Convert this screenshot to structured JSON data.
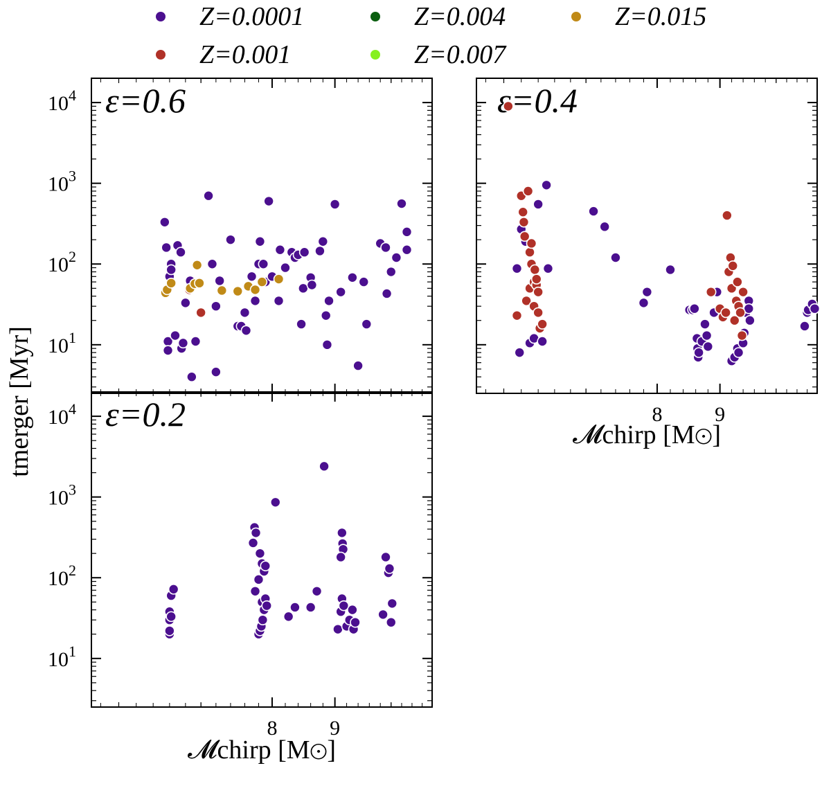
{
  "chart_data": {
    "type": "scatter",
    "x_scale": "log",
    "y_scale": "log",
    "xlabel": "𝓜chirp [M⊙]",
    "ylabel": "tmerger [Myr]",
    "xlim": [
      5.7,
      10.8
    ],
    "ylim": [
      2.5,
      20000
    ],
    "xticks": [
      {
        "value": 8,
        "label": "8"
      },
      {
        "value": 9,
        "label": "9"
      }
    ],
    "yticks": [
      {
        "value": 10,
        "base": "10",
        "exp": "1"
      },
      {
        "value": 100,
        "base": "10",
        "exp": "2"
      },
      {
        "value": 1000,
        "base": "10",
        "exp": "3"
      },
      {
        "value": 10000,
        "base": "10",
        "exp": "4"
      }
    ],
    "legend": {
      "placement": "top",
      "entries": [
        {
          "label": "Z=0.0001",
          "color": "#4B0F8F"
        },
        {
          "label": "Z=0.004",
          "color": "#0B5E10"
        },
        {
          "label": "Z=0.015",
          "color": "#C08A17"
        },
        {
          "label": "Z=0.001",
          "color": "#B03128"
        },
        {
          "label": "Z=0.007",
          "color": "#86F01F"
        }
      ]
    },
    "panels": [
      {
        "id": "eps06",
        "label": "ε=0.6",
        "series": [
          {
            "name": "Z=0.0001",
            "color": "#4B0F8F",
            "points": [
              [
                6.58,
                11
              ],
              [
                6.54,
                330
              ],
              [
                6.56,
                160
              ],
              [
                6.58,
                8.5
              ],
              [
                6.6,
                70
              ],
              [
                6.62,
                100
              ],
              [
                6.62,
                85
              ],
              [
                6.67,
                13
              ],
              [
                6.7,
                170
              ],
              [
                6.74,
                140
              ],
              [
                6.75,
                9
              ],
              [
                6.77,
                10.5
              ],
              [
                6.8,
                33
              ],
              [
                6.86,
                62
              ],
              [
                6.88,
                4
              ],
              [
                6.93,
                11
              ],
              [
                7.1,
                700
              ],
              [
                7.15,
                100
              ],
              [
                7.2,
                4.6
              ],
              [
                7.2,
                30
              ],
              [
                7.25,
                62
              ],
              [
                7.4,
                200
              ],
              [
                7.5,
                17
              ],
              [
                7.55,
                17
              ],
              [
                7.6,
                25
              ],
              [
                7.62,
                15
              ],
              [
                7.7,
                70
              ],
              [
                7.75,
                35
              ],
              [
                7.8,
                100
              ],
              [
                7.82,
                190
              ],
              [
                7.87,
                100
              ],
              [
                7.9,
                60
              ],
              [
                7.95,
                600
              ],
              [
                8.0,
                70
              ],
              [
                8.1,
                35
              ],
              [
                8.12,
                150
              ],
              [
                8.2,
                90
              ],
              [
                8.3,
                140
              ],
              [
                8.35,
                120
              ],
              [
                8.4,
                130
              ],
              [
                8.45,
                18
              ],
              [
                8.48,
                50
              ],
              [
                8.5,
                140
              ],
              [
                8.6,
                68
              ],
              [
                8.62,
                55
              ],
              [
                8.75,
                145
              ],
              [
                8.8,
                190
              ],
              [
                8.85,
                23
              ],
              [
                8.87,
                10
              ],
              [
                8.9,
                35
              ],
              [
                9.0,
                550
              ],
              [
                9.1,
                45
              ],
              [
                9.3,
                68
              ],
              [
                9.4,
                5.5
              ],
              [
                9.5,
                60
              ],
              [
                9.55,
                18
              ],
              [
                9.8,
                180
              ],
              [
                9.9,
                160
              ],
              [
                9.92,
                43
              ],
              [
                10.0,
                80
              ],
              [
                10.1,
                120
              ],
              [
                10.2,
                560
              ],
              [
                10.3,
                150
              ],
              [
                10.3,
                250
              ]
            ]
          },
          {
            "name": "Z=0.001",
            "color": "#B03128",
            "points": [
              [
                6.85,
                48
              ],
              [
                7.0,
                25
              ]
            ]
          },
          {
            "name": "Z=0.015",
            "color": "#C08A17",
            "points": [
              [
                6.55,
                44
              ],
              [
                6.57,
                48
              ],
              [
                6.62,
                58
              ],
              [
                6.86,
                50
              ],
              [
                6.92,
                57
              ],
              [
                6.95,
                97
              ],
              [
                6.98,
                58
              ],
              [
                7.28,
                47
              ],
              [
                7.5,
                46
              ],
              [
                7.65,
                53
              ],
              [
                7.75,
                48
              ],
              [
                7.85,
                60
              ],
              [
                8.1,
                65
              ]
            ]
          }
        ]
      },
      {
        "id": "eps04",
        "label": "ε=0.4",
        "series": [
          {
            "name": "Z=0.0001",
            "color": "#4B0F8F",
            "points": [
              [
                6.15,
                88
              ],
              [
                6.2,
                270
              ],
              [
                6.18,
                8
              ],
              [
                6.25,
                190
              ],
              [
                6.3,
                10.5
              ],
              [
                6.35,
                12
              ],
              [
                6.4,
                550
              ],
              [
                6.45,
                11
              ],
              [
                6.5,
                950
              ],
              [
                6.52,
                88
              ],
              [
                7.1,
                450
              ],
              [
                7.25,
                290
              ],
              [
                7.4,
                120
              ],
              [
                7.85,
                45
              ],
              [
                7.8,
                33
              ],
              [
                8.2,
                85
              ],
              [
                8.5,
                27
              ],
              [
                8.55,
                27
              ],
              [
                8.58,
                28
              ],
              [
                8.62,
                12
              ],
              [
                8.63,
                9
              ],
              [
                8.64,
                7
              ],
              [
                8.65,
                8
              ],
              [
                8.7,
                11
              ],
              [
                8.75,
                18
              ],
              [
                8.78,
                13
              ],
              [
                8.8,
                9.5
              ],
              [
                8.9,
                25
              ],
              [
                8.95,
                45
              ],
              [
                9.2,
                6.3
              ],
              [
                9.25,
                7
              ],
              [
                9.3,
                9
              ],
              [
                9.32,
                8
              ],
              [
                9.4,
                10.5
              ],
              [
                9.42,
                14
              ],
              [
                9.45,
                25
              ],
              [
                9.5,
                35
              ],
              [
                9.5,
                28
              ],
              [
                9.52,
                20
              ],
              [
                10.55,
                17
              ],
              [
                10.6,
                25
              ],
              [
                10.62,
                27
              ],
              [
                10.7,
                32
              ],
              [
                10.75,
                28
              ]
            ]
          },
          {
            "name": "Z=0.001",
            "color": "#B03128",
            "points": [
              [
                6.05,
                9000
              ],
              [
                6.15,
                23
              ],
              [
                6.2,
                700
              ],
              [
                6.22,
                440
              ],
              [
                6.23,
                330
              ],
              [
                6.24,
                220
              ],
              [
                6.26,
                35
              ],
              [
                6.28,
                800
              ],
              [
                6.3,
                140
              ],
              [
                6.3,
                50
              ],
              [
                6.32,
                180
              ],
              [
                6.32,
                100
              ],
              [
                6.35,
                60
              ],
              [
                6.35,
                30
              ],
              [
                6.36,
                85
              ],
              [
                6.38,
                55
              ],
              [
                6.38,
                65
              ],
              [
                6.4,
                45
              ],
              [
                6.4,
                25
              ],
              [
                6.42,
                16
              ],
              [
                6.45,
                18
              ],
              [
                8.85,
                45
              ],
              [
                9.0,
                28
              ],
              [
                9.05,
                22
              ],
              [
                9.1,
                25
              ],
              [
                9.12,
                400
              ],
              [
                9.15,
                80
              ],
              [
                9.18,
                120
              ],
              [
                9.2,
                50
              ],
              [
                9.22,
                95
              ],
              [
                9.25,
                20
              ],
              [
                9.28,
                35
              ],
              [
                9.3,
                60
              ],
              [
                9.32,
                30
              ],
              [
                9.35,
                25
              ],
              [
                9.38,
                13
              ],
              [
                9.4,
                45
              ]
            ]
          }
        ]
      },
      {
        "id": "eps02",
        "label": "ε=0.2",
        "series": [
          {
            "name": "Z=0.0001",
            "color": "#4B0F8F",
            "points": [
              [
                6.6,
                20
              ],
              [
                6.6,
                22
              ],
              [
                6.6,
                30
              ],
              [
                6.6,
                38
              ],
              [
                6.62,
                60
              ],
              [
                6.65,
                72
              ],
              [
                6.62,
                33
              ],
              [
                7.72,
                270
              ],
              [
                7.74,
                420
              ],
              [
                7.76,
                360
              ],
              [
                7.75,
                68
              ],
              [
                7.8,
                95
              ],
              [
                7.82,
                200
              ],
              [
                7.85,
                150
              ],
              [
                7.85,
                50
              ],
              [
                7.88,
                120
              ],
              [
                7.9,
                140
              ],
              [
                7.8,
                20
              ],
              [
                7.82,
                22
              ],
              [
                7.84,
                25
              ],
              [
                7.86,
                30
              ],
              [
                7.88,
                40
              ],
              [
                7.9,
                55
              ],
              [
                7.92,
                45
              ],
              [
                8.05,
                860
              ],
              [
                8.25,
                33
              ],
              [
                8.35,
                43
              ],
              [
                8.6,
                43
              ],
              [
                8.7,
                68
              ],
              [
                8.82,
                2400
              ],
              [
                9.05,
                23
              ],
              [
                9.1,
                38
              ],
              [
                9.12,
                360
              ],
              [
                9.13,
                265
              ],
              [
                9.14,
                225
              ],
              [
                9.1,
                180
              ],
              [
                9.12,
                55
              ],
              [
                9.15,
                45
              ],
              [
                9.2,
                25
              ],
              [
                9.25,
                30
              ],
              [
                9.3,
                40
              ],
              [
                9.32,
                23
              ],
              [
                9.35,
                28
              ],
              [
                9.85,
                35
              ],
              [
                9.9,
                180
              ],
              [
                9.95,
                115
              ],
              [
                9.97,
                130
              ],
              [
                10.0,
                28
              ],
              [
                10.02,
                48
              ]
            ]
          }
        ]
      }
    ]
  }
}
